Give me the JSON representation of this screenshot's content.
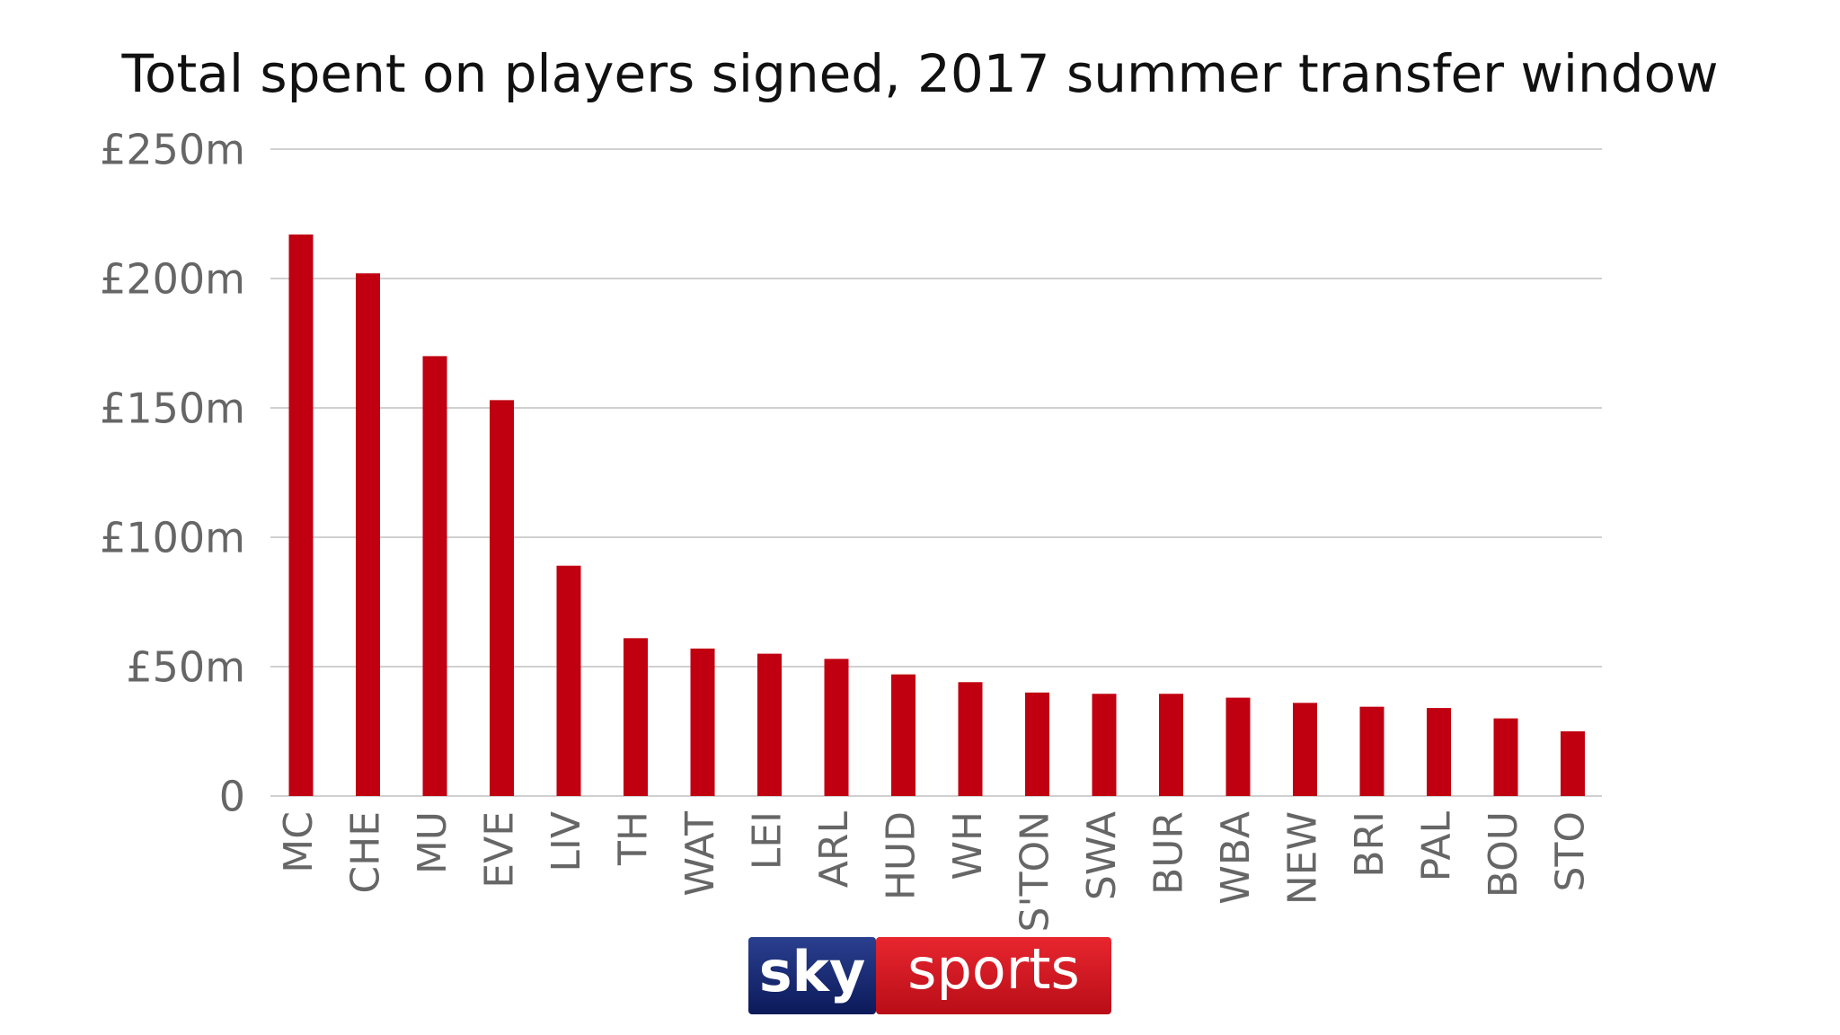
{
  "chart_data": {
    "type": "bar",
    "title": "Total spent on players signed, 2017 summer transfer window",
    "categories": [
      "MC",
      "CHE",
      "MU",
      "EVE",
      "LIV",
      "TH",
      "WAT",
      "LEI",
      "ARL",
      "HUD",
      "WH",
      "S'TON",
      "SWA",
      "BUR",
      "WBA",
      "NEW",
      "BRI",
      "PAL",
      "BOU",
      "STO"
    ],
    "values": [
      217,
      202,
      170,
      153,
      89,
      61,
      57,
      55,
      53,
      47,
      44,
      40,
      39.5,
      39.5,
      38,
      36,
      34.5,
      34,
      30,
      25
    ],
    "color": "#c00010",
    "ylim": [
      0,
      250
    ],
    "yticks": [
      0,
      {
        "value": 50,
        "label": "£50m"
      },
      {
        "value": 100,
        "label": "£100m"
      },
      {
        "value": 150,
        "label": "£150m"
      },
      {
        "value": 200,
        "label": "£200m"
      },
      {
        "value": 250,
        "label": "£250m"
      }
    ],
    "grid": true
  },
  "logo": {
    "left": "sky",
    "right": "sports"
  }
}
